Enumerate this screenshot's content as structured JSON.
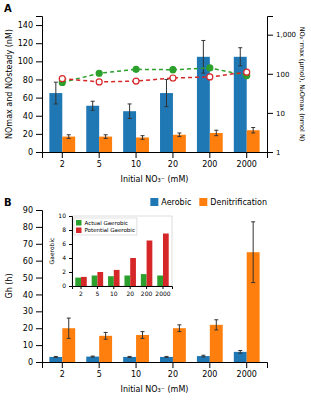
{
  "chart_data": [
    {
      "type": "bar",
      "title": "A",
      "categories": [
        "2",
        "5",
        "10",
        "20",
        "200",
        "2000"
      ],
      "xlabel": "Initial NO₃⁻ (mM)",
      "ylabel": "NOmax and NOsteady (nM)",
      "y2label": "NO₂⁻max (μmol), N₂Omax (nmol N)",
      "series": [
        {
          "type": "bar",
          "values": [
            65,
            51,
            45,
            65,
            105,
            105
          ],
          "errors": [
            12,
            5,
            8,
            15,
            18,
            10
          ]
        },
        {
          "type": "bar",
          "values": [
            17,
            17,
            16,
            19,
            21,
            24
          ],
          "errors": [
            2,
            2,
            2,
            2,
            3,
            3
          ]
        },
        {
          "type": "line",
          "axis": "y2",
          "marker": "circle",
          "line_style": "dashed",
          "values": [
            60,
            103,
            130,
            127,
            141,
            90
          ],
          "errors": [
            8,
            5,
            10,
            20,
            15,
            12
          ]
        },
        {
          "type": "line",
          "axis": "y2",
          "marker": "open_circle",
          "line_style": "dashed",
          "values": [
            75,
            62,
            65,
            78,
            83,
            110
          ],
          "errors": [
            5,
            5,
            5,
            8,
            8,
            12
          ]
        }
      ],
      "ylim": [
        0,
        150
      ],
      "yticks": [
        0,
        20,
        40,
        60,
        80,
        100,
        120,
        140
      ],
      "y2lim": [
        1,
        3000
      ],
      "y2ticks": [
        1,
        10,
        100,
        {
          "value": 1000,
          "label": "1,000"
        }
      ],
      "log": "y2",
      "grid": false
    },
    {
      "type": "bar",
      "title": "B",
      "categories": [
        "2",
        "5",
        "10",
        "20",
        "200",
        "2000"
      ],
      "xlabel": "Initial NO₃⁻ (mM)",
      "ylabel": "Gh (h)",
      "series": [
        {
          "name": "Aerobic",
          "values": [
            3,
            3.2,
            3,
            3,
            3.5,
            6
          ],
          "errors": [
            0.3,
            0.3,
            0.3,
            0.3,
            0.5,
            0.8
          ]
        },
        {
          "name": "Denitrification",
          "values": [
            20,
            15.5,
            16,
            20,
            22,
            65
          ],
          "errors": [
            6,
            2,
            2,
            2,
            3,
            18
          ]
        }
      ],
      "ylim": [
        0,
        90
      ],
      "yticks": [
        0,
        10,
        20,
        30,
        40,
        50,
        60,
        70,
        80,
        90
      ],
      "legend": "upper right",
      "grid": false
    },
    {
      "type": "bar",
      "categories": [
        "2",
        "5",
        "10",
        "20",
        "200",
        "2000"
      ],
      "ylabel": "Gaerobic",
      "series": [
        {
          "name": "Actual Gaerobic",
          "values": [
            1.2,
            1.5,
            1.4,
            1.5,
            1.7,
            1.5
          ]
        },
        {
          "name": "Potential Gaerobic",
          "values": [
            1.3,
            2.0,
            2.3,
            4.0,
            6.5,
            7.5
          ]
        }
      ],
      "ylim": [
        0,
        10
      ],
      "yticks": [
        0,
        2,
        4,
        6,
        8,
        10
      ],
      "legend": "upper left",
      "grid": false
    }
  ]
}
